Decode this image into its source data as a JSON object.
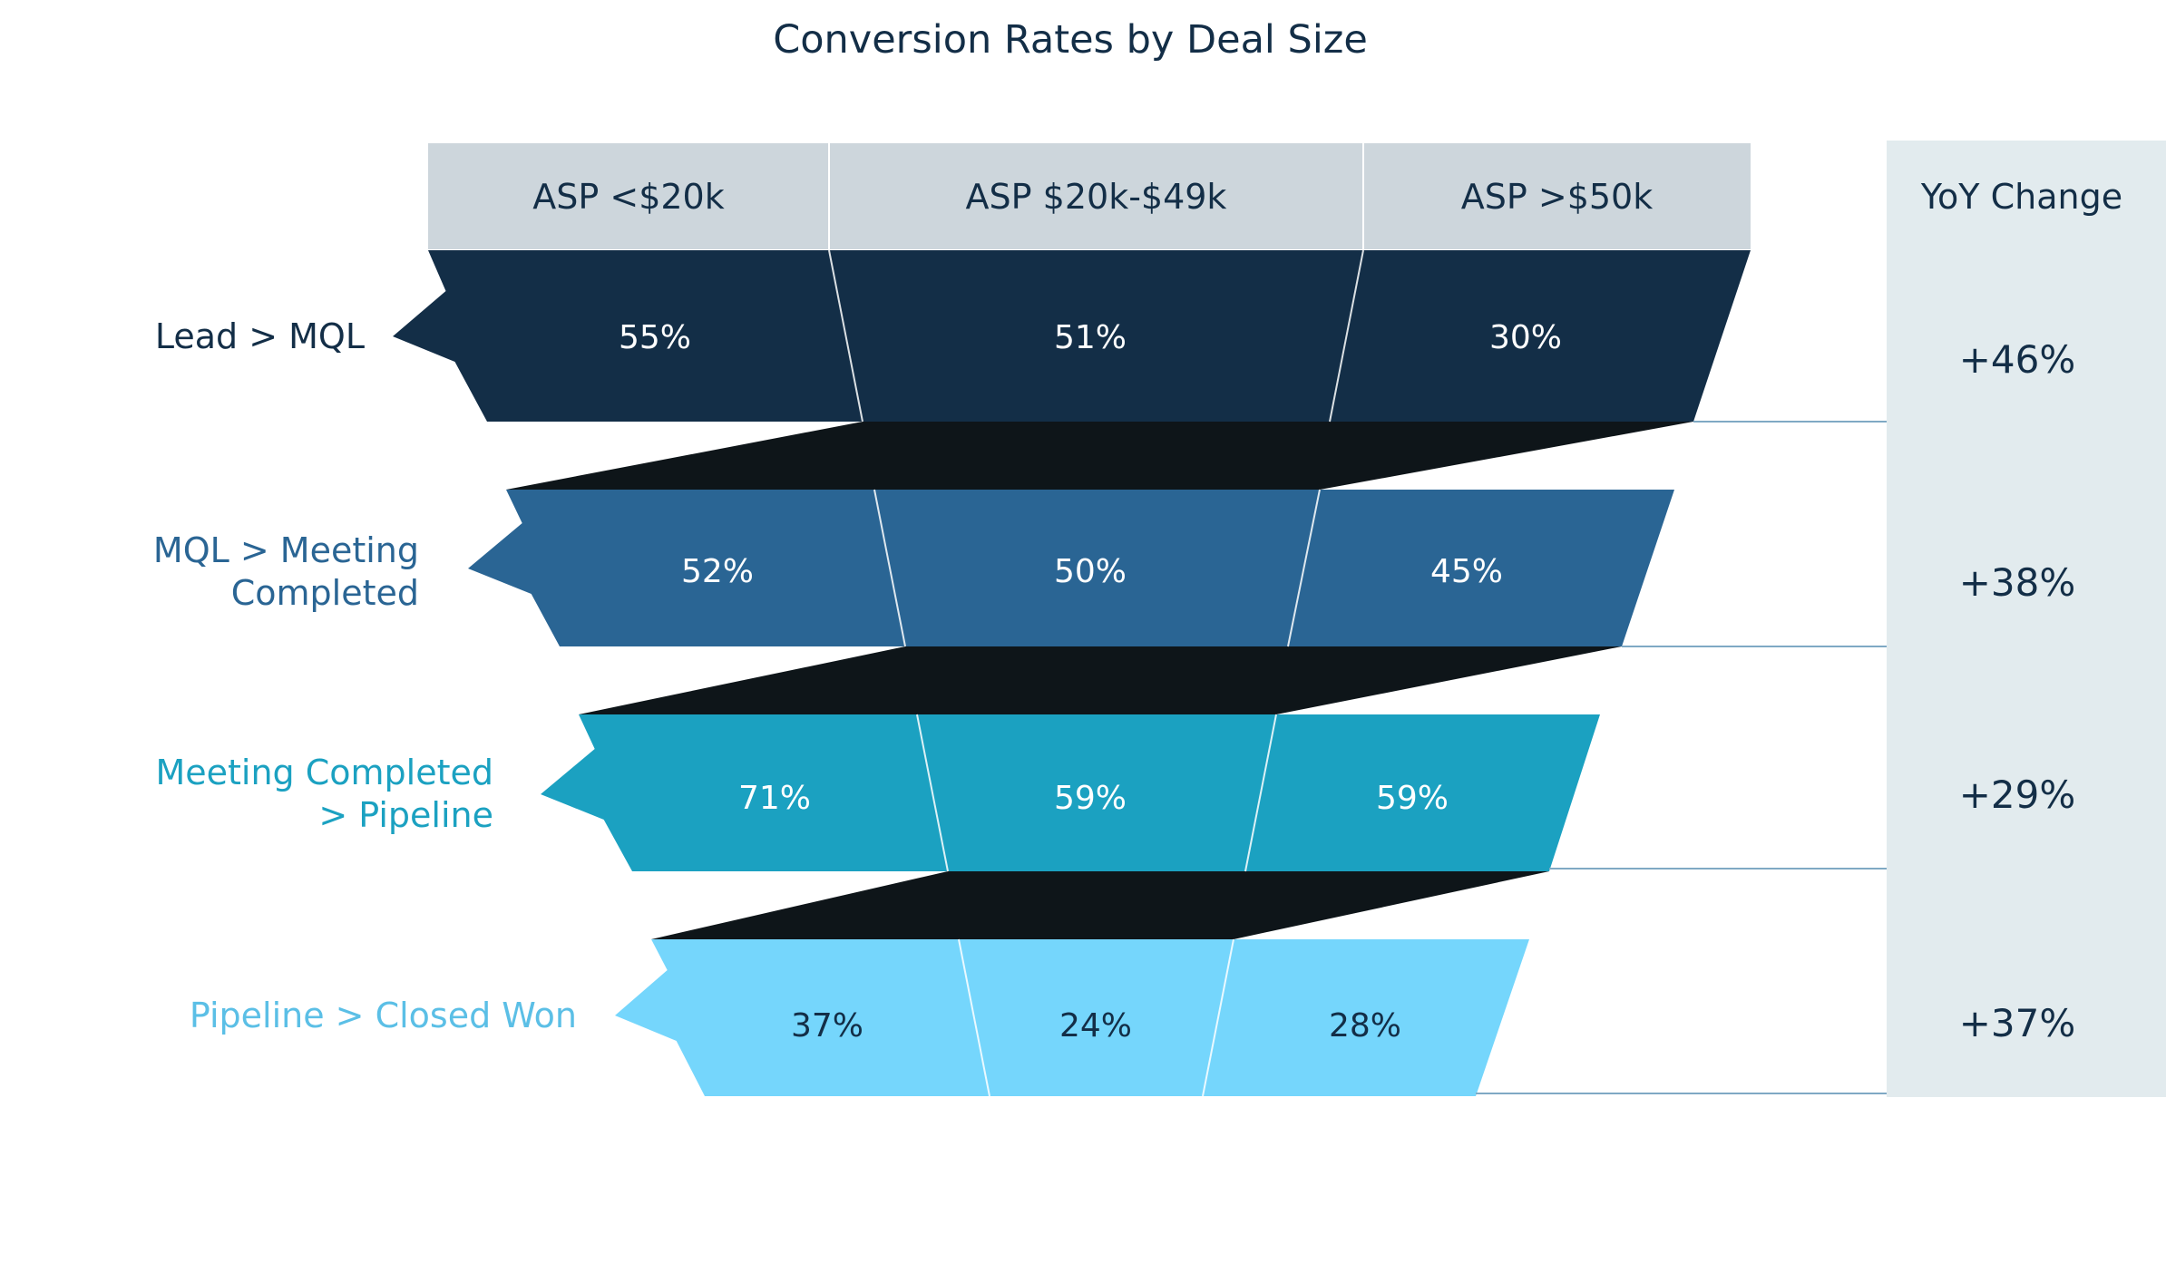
{
  "chart_data": {
    "type": "table",
    "title": "Conversion Rates by Deal Size",
    "columns": [
      "ASP <$20k",
      "ASP $20k-$49k",
      "ASP >$50k"
    ],
    "yoy_header": "YoY Change",
    "rows": [
      {
        "label_lines": [
          "Lead > MQL"
        ],
        "values": [
          "55%",
          "51%",
          "30%"
        ],
        "yoy": "+46%",
        "color": "#132e47",
        "label_color": "#132e47",
        "text_color": "#ffffff"
      },
      {
        "label_lines": [
          "MQL > Meeting",
          "Completed"
        ],
        "values": [
          "52%",
          "50%",
          "45%"
        ],
        "yoy": "+38%",
        "color": "#2a6594",
        "label_color": "#2a6594",
        "text_color": "#ffffff"
      },
      {
        "label_lines": [
          "Meeting Completed",
          "> Pipeline"
        ],
        "values": [
          "71%",
          "59%",
          "59%"
        ],
        "yoy": "+29%",
        "color": "#1ba1c1",
        "label_color": "#1ba1c1",
        "text_color": "#ffffff"
      },
      {
        "label_lines": [
          "Pipeline > Closed Won"
        ],
        "values": [
          "37%",
          "24%",
          "28%"
        ],
        "yoy": "+37%",
        "color": "#75d6fc",
        "label_color": "#5bbfe6",
        "text_color": "#132e47"
      }
    ],
    "header_color": "#cdd6dc",
    "yoy_panel_color": "#e2ebee",
    "connector_color": "#0e1519",
    "text_dark": "#132e47"
  }
}
